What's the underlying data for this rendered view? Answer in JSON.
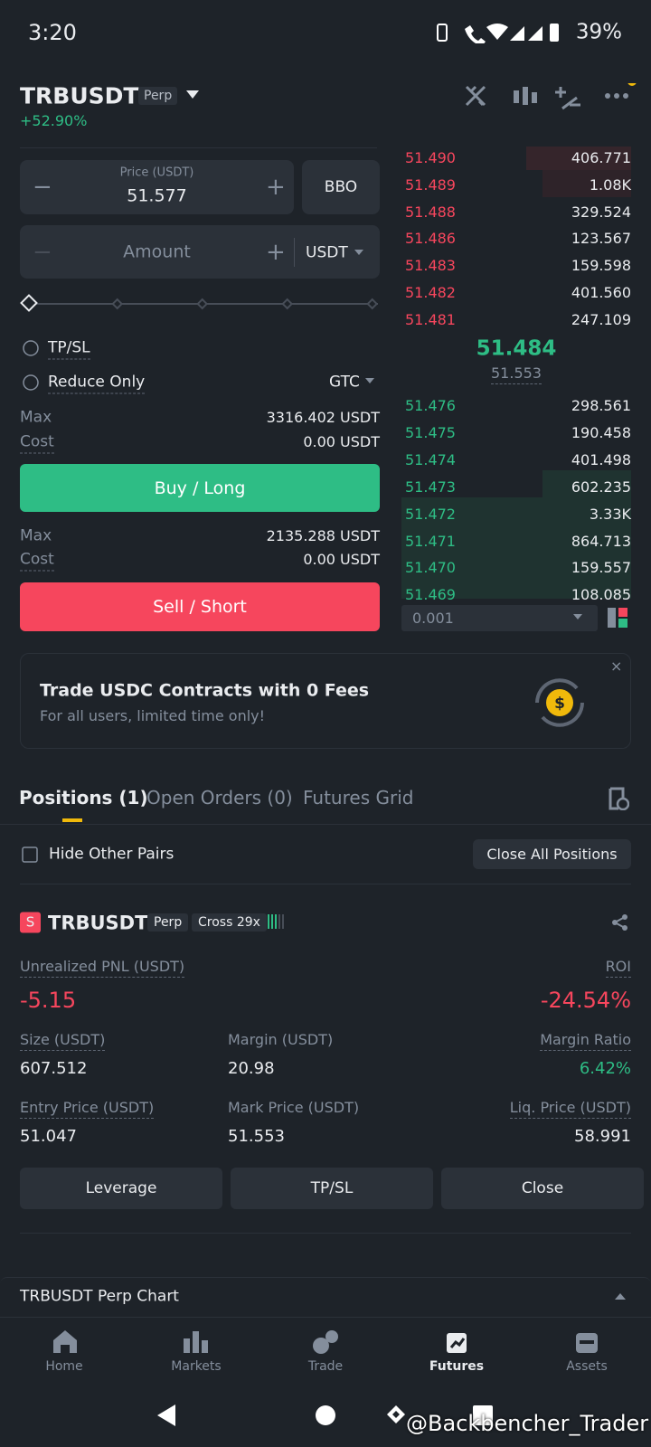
{
  "status_bar": {
    "time": "3:20",
    "battery": "39%"
  },
  "header": {
    "symbol": "TRBUSDT",
    "badge": "Perp",
    "change": "+52.90%"
  },
  "order_form": {
    "price_label": "Price (USDT)",
    "price": "51.577",
    "bbo": "BBO",
    "amount_placeholder": "Amount",
    "unit": "USDT",
    "tpsl": "TP/SL",
    "reduce_only": "Reduce Only",
    "time_in_force": "GTC",
    "buy": {
      "max_label": "Max",
      "max_value": "3316.402 USDT",
      "cost_label": "Cost",
      "cost_value": "0.00 USDT",
      "button": "Buy / Long"
    },
    "sell": {
      "max_label": "Max",
      "max_value": "2135.288 USDT",
      "cost_label": "Cost",
      "cost_value": "0.00 USDT",
      "button": "Sell / Short"
    }
  },
  "order_book": {
    "asks": [
      [
        "51.490",
        "406.771"
      ],
      [
        "51.489",
        "1.08K"
      ],
      [
        "51.488",
        "329.524"
      ],
      [
        "51.486",
        "123.567"
      ],
      [
        "51.483",
        "159.598"
      ],
      [
        "51.482",
        "401.560"
      ],
      [
        "51.481",
        "247.109"
      ]
    ],
    "last_price": "51.484",
    "mark_price": "51.553",
    "bids": [
      [
        "51.476",
        "298.561"
      ],
      [
        "51.475",
        "190.458"
      ],
      [
        "51.474",
        "401.498"
      ],
      [
        "51.473",
        "602.235"
      ],
      [
        "51.472",
        "3.33K"
      ],
      [
        "51.471",
        "864.713"
      ],
      [
        "51.470",
        "159.557"
      ],
      [
        "51.469",
        "108.085"
      ]
    ],
    "precision": "0.001"
  },
  "banner": {
    "title": "Trade USDC Contracts with 0 Fees",
    "subtitle": "For all users, limited time only!"
  },
  "tabs": [
    "Positions (1)",
    "Open Orders (0)",
    "Futures Grid"
  ],
  "filters": {
    "hide_other": "Hide Other Pairs",
    "close_all": "Close All Positions"
  },
  "position": {
    "side": "S",
    "symbol": "TRBUSDT",
    "badges": [
      "Perp",
      "Cross 29x"
    ],
    "pnl_label": "Unrealized PNL (USDT)",
    "pnl": "-5.15",
    "roi_label": "ROI",
    "roi": "-24.54%",
    "fields": [
      {
        "label": "Size (USDT)",
        "value": "607.512"
      },
      {
        "label": "Margin (USDT)",
        "value": "20.98"
      },
      {
        "label": "Margin Ratio",
        "value": "6.42%"
      },
      {
        "label": "Entry Price (USDT)",
        "value": "51.047"
      },
      {
        "label": "Mark Price (USDT)",
        "value": "51.553"
      },
      {
        "label": "Liq. Price (USDT)",
        "value": "58.991"
      }
    ],
    "buttons": [
      "Leverage",
      "TP/SL",
      "Close"
    ]
  },
  "chart_bar": "TRBUSDT Perp Chart",
  "nav": [
    "Home",
    "Markets",
    "Trade",
    "Futures",
    "Assets"
  ],
  "watermark": "@Backbencher_Trader"
}
